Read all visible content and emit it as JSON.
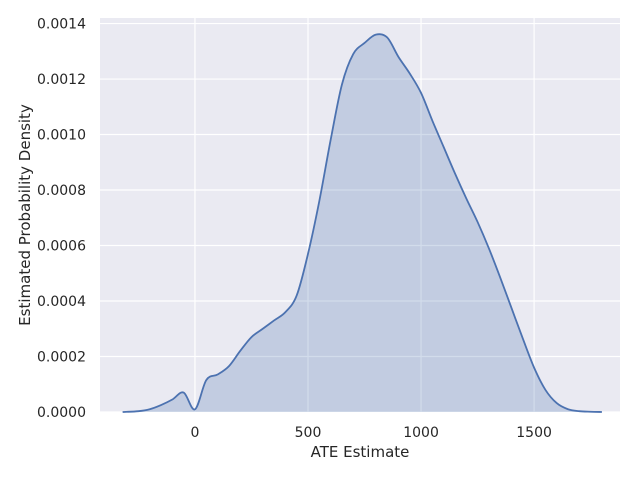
{
  "chart_data": {
    "type": "area",
    "title": "",
    "xlabel": "ATE Estimate",
    "ylabel": "Estimated Probability Density",
    "xlim": [
      -420,
      1880
    ],
    "ylim": [
      0,
      0.00142
    ],
    "xticks": [
      0,
      500,
      1000,
      1500
    ],
    "xtick_labels": [
      "0",
      "500",
      "1000",
      "1500"
    ],
    "yticks": [
      0,
      0.0002,
      0.0004,
      0.0006,
      0.0008,
      0.001,
      0.0012,
      0.0014
    ],
    "ytick_labels": [
      "0.0000",
      "0.0002",
      "0.0004",
      "0.0006",
      "0.0008",
      "0.0010",
      "0.0012",
      "0.0014"
    ],
    "grid": true,
    "colors": {
      "background": "#EAEAF2",
      "grid": "#FFFFFF",
      "line": "#4C72B0",
      "fill": "#4C72B0"
    },
    "series": [
      {
        "x": [
          -320,
          -250,
          -200,
          -150,
          -100,
          -50,
          0,
          50,
          100,
          150,
          200,
          250,
          300,
          350,
          400,
          450,
          500,
          550,
          600,
          650,
          700,
          750,
          800,
          850,
          900,
          950,
          1000,
          1050,
          1100,
          1150,
          1200,
          1250,
          1300,
          1350,
          1400,
          1450,
          1500,
          1550,
          1600,
          1650,
          1700,
          1750,
          1800
        ],
        "y": [
          0.0,
          3e-06,
          1e-05,
          2.5e-05,
          4.5e-05,
          7e-05,
          9.5e-06,
          0.000115,
          0.000135,
          0.000165,
          0.00022,
          0.00027,
          0.0003,
          0.00033,
          0.00036,
          0.00042,
          0.00057,
          0.00076,
          0.00098,
          0.00118,
          0.00129,
          0.00133,
          0.00136,
          0.00135,
          0.00128,
          0.00122,
          0.00115,
          0.00105,
          0.000955,
          0.00086,
          0.00077,
          0.000685,
          0.00059,
          0.000485,
          0.000375,
          0.000265,
          0.00016,
          8e-05,
          3.2e-05,
          1e-05,
          3e-06,
          1e-06,
          0.0
        ]
      }
    ]
  }
}
